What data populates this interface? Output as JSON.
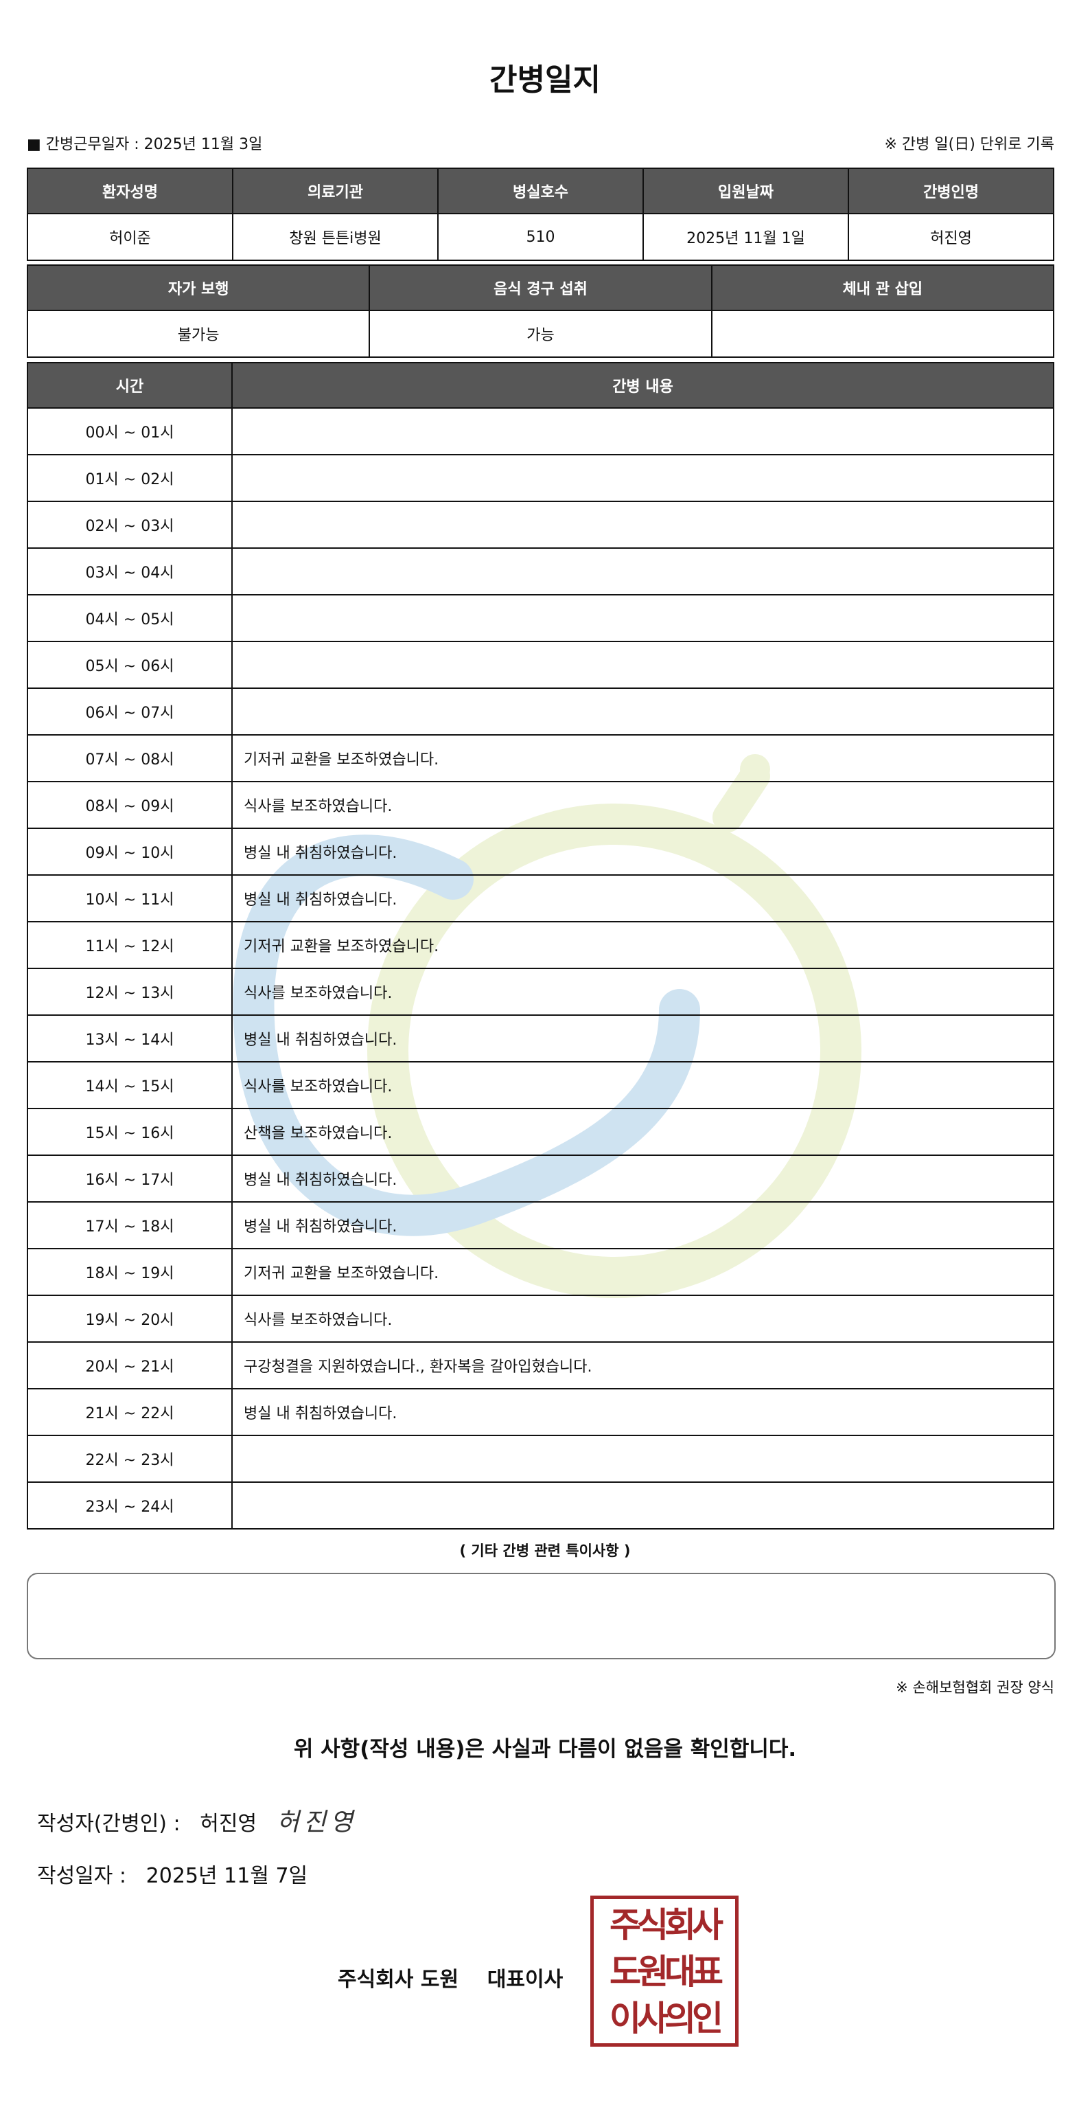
{
  "title": "간병일지",
  "work_date_label": "■ 간병근무일자  :   2025년 11월 3일",
  "record_note": "※ 간병 일(日) 단위로 기록",
  "patient_table": {
    "headers": [
      "환자성명",
      "의료기관",
      "병실호수",
      "입원날짜",
      "간병인명"
    ],
    "values": [
      "허이준",
      "창원 튼튼i병원",
      "510",
      "2025년 11월 1일",
      "허진영"
    ]
  },
  "status_table": {
    "headers": [
      "자가 보행",
      "음식 경구 섭취",
      "체내 관 삽입"
    ],
    "values": [
      "불가능",
      "가능",
      ""
    ]
  },
  "care_table": {
    "headers": [
      "시간",
      "간병 내용"
    ],
    "rows": [
      {
        "time": "00시 ~ 01시",
        "content": ""
      },
      {
        "time": "01시 ~ 02시",
        "content": ""
      },
      {
        "time": "02시 ~ 03시",
        "content": ""
      },
      {
        "time": "03시 ~ 04시",
        "content": ""
      },
      {
        "time": "04시 ~ 05시",
        "content": ""
      },
      {
        "time": "05시 ~ 06시",
        "content": ""
      },
      {
        "time": "06시 ~ 07시",
        "content": ""
      },
      {
        "time": "07시 ~ 08시",
        "content": "기저귀 교환을 보조하였습니다."
      },
      {
        "time": "08시 ~ 09시",
        "content": "식사를 보조하였습니다."
      },
      {
        "time": "09시 ~ 10시",
        "content": "병실 내 취침하였습니다."
      },
      {
        "time": "10시 ~ 11시",
        "content": "병실 내 취침하였습니다."
      },
      {
        "time": "11시 ~ 12시",
        "content": "기저귀 교환을 보조하였습니다."
      },
      {
        "time": "12시 ~ 13시",
        "content": "식사를 보조하였습니다."
      },
      {
        "time": "13시 ~ 14시",
        "content": "병실 내 취침하였습니다."
      },
      {
        "time": "14시 ~ 15시",
        "content": "식사를 보조하였습니다."
      },
      {
        "time": "15시 ~ 16시",
        "content": "산책을 보조하였습니다."
      },
      {
        "time": "16시 ~ 17시",
        "content": "병실 내 취침하였습니다."
      },
      {
        "time": "17시 ~ 18시",
        "content": "병실 내 취침하였습니다."
      },
      {
        "time": "18시 ~ 19시",
        "content": "기저귀 교환을 보조하였습니다."
      },
      {
        "time": "19시 ~ 20시",
        "content": "식사를 보조하였습니다."
      },
      {
        "time": "20시 ~ 21시",
        "content": "구강청결을 지원하였습니다., 환자복을 갈아입혔습니다."
      },
      {
        "time": "21시 ~ 22시",
        "content": "병실 내 취침하였습니다."
      },
      {
        "time": "22시 ~ 23시",
        "content": ""
      },
      {
        "time": "23시 ~ 24시",
        "content": ""
      }
    ]
  },
  "etc_label": "( 기타 간병 관련 특이사항 )",
  "etc_value": "",
  "form_note": "※ 손해보험협회 권장 양식",
  "confirm_text": "위 사항(작성 내용)은 사실과 다름이 없음을 확인합니다.",
  "writer_label": "작성자(간병인) :",
  "writer_name": "허진영",
  "signature": "허진영",
  "date_label": "작성일자 :",
  "date_value": "2025년 11월 7일",
  "company": "주식회사 도원    대표이사",
  "stamp_lines": [
    "주식회사",
    "도원대표",
    "이사의인"
  ],
  "colors": {
    "header_bg": "#575757",
    "stamp": "#a3282a",
    "watermark_blue": "#cfe3f1",
    "watermark_green": "#eef3d8"
  }
}
